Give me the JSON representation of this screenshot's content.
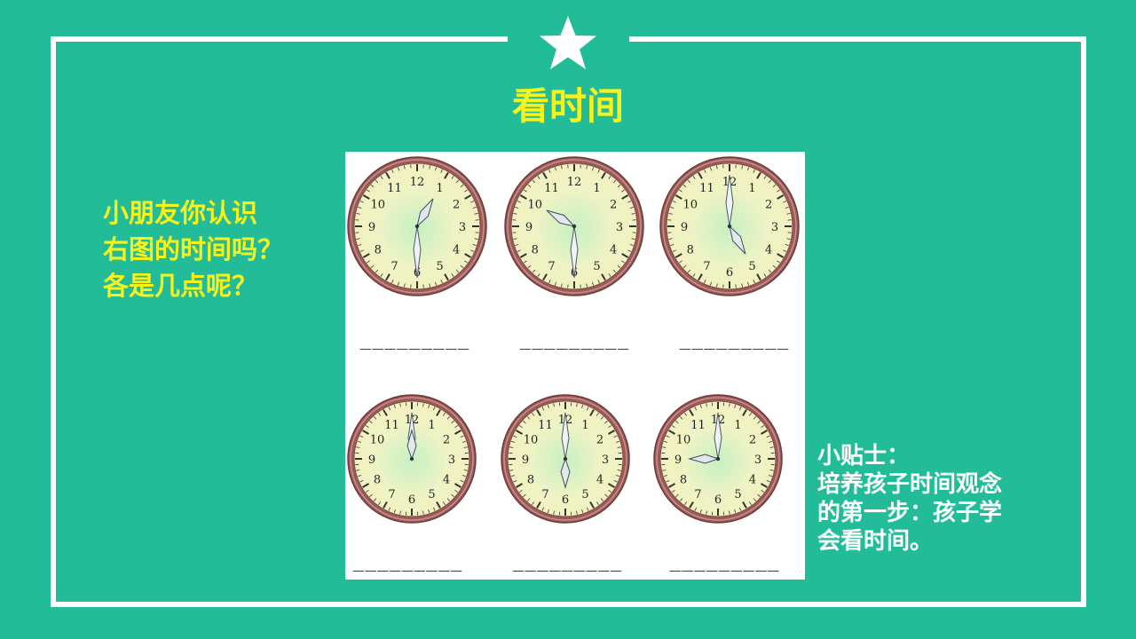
{
  "slide": {
    "title": "看时间",
    "question_lines": [
      "小朋友你认识",
      "右图的时间吗？",
      "各是几点呢？"
    ],
    "tip_lines": [
      "小贴士：",
      "培养孩子时间观念",
      "的第一步：孩子学",
      "会看时间。"
    ],
    "colors": {
      "background": "#22bd98",
      "frame": "#ffffff",
      "title": "#f6f21a",
      "question": "#f6f21a",
      "tip": "#ffffff",
      "clock_rim": "#9c5a57",
      "clock_face": "#eef3c4"
    },
    "star_icon": "white-star"
  },
  "clocks": {
    "numerals": [
      "12",
      "1",
      "2",
      "3",
      "4",
      "5",
      "6",
      "7",
      "8",
      "9",
      "10",
      "11"
    ],
    "answer_blank": "—————————",
    "items": [
      {
        "hour_hand_on": 1,
        "minute_hand_on": 6
      },
      {
        "hour_hand_on": 10,
        "minute_hand_on": 6
      },
      {
        "hour_hand_on": 5,
        "minute_hand_on": 12
      },
      {
        "hour_hand_on": 12,
        "minute_hand_on": 12
      },
      {
        "hour_hand_on": 6,
        "minute_hand_on": 12
      },
      {
        "hour_hand_on": 9,
        "minute_hand_on": 12
      }
    ]
  }
}
